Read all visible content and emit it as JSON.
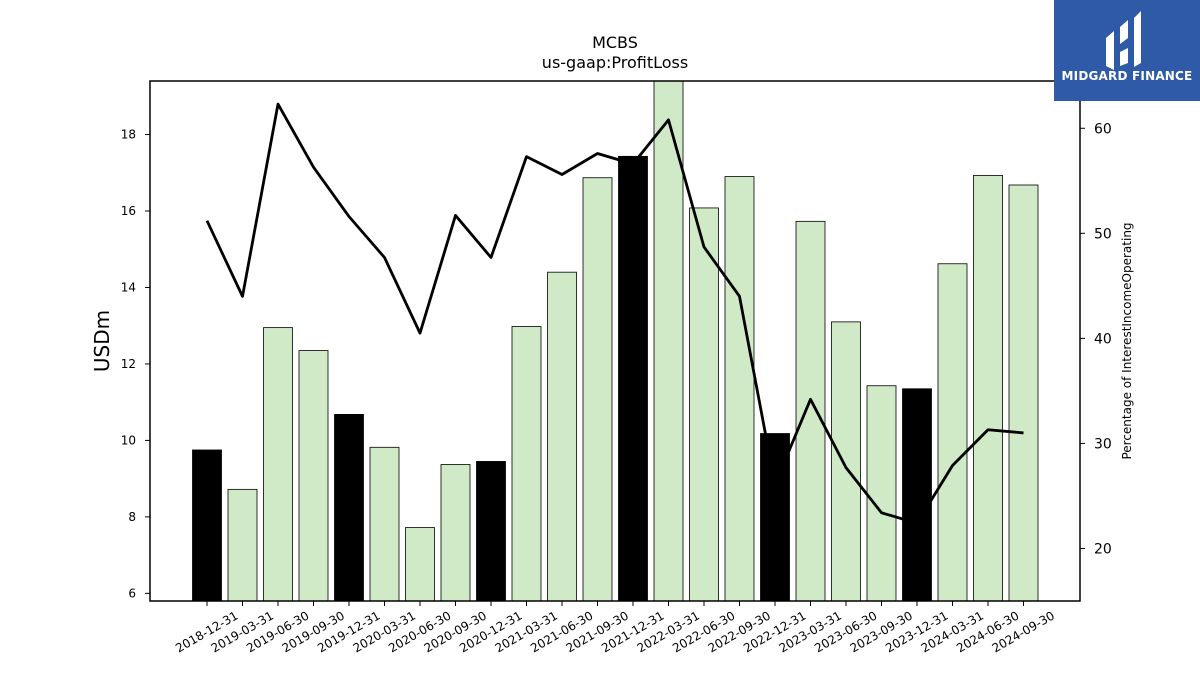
{
  "chart_data": {
    "type": "bar",
    "title": "MCBS",
    "subtitle": "us-gaap:ProfitLoss",
    "ylabel": "USDm",
    "y2label": "Percentage of InterestIncomeOperating",
    "ylim": [
      5.8,
      19.4
    ],
    "y2lim": [
      15,
      64.5
    ],
    "yticks": [
      6,
      8,
      10,
      12,
      14,
      16,
      18
    ],
    "y2ticks": [
      20,
      30,
      40,
      50,
      60
    ],
    "categories": [
      "2018-12-31",
      "2019-03-31",
      "2019-06-30",
      "2019-09-30",
      "2019-12-31",
      "2020-03-31",
      "2020-06-30",
      "2020-09-30",
      "2020-12-31",
      "2021-03-31",
      "2021-06-30",
      "2021-09-30",
      "2021-12-31",
      "2022-03-31",
      "2022-06-30",
      "2022-09-30",
      "2022-12-31",
      "2023-03-31",
      "2023-06-30",
      "2023-09-30",
      "2023-12-31",
      "2024-03-31",
      "2024-06-30",
      "2024-09-30"
    ],
    "series": [
      {
        "kind": "bar",
        "axis": "left",
        "values": [
          9.75,
          8.72,
          12.95,
          12.35,
          10.68,
          9.82,
          7.72,
          9.37,
          9.45,
          12.98,
          14.4,
          16.87,
          17.43,
          19.4,
          16.08,
          16.9,
          10.18,
          15.73,
          13.1,
          11.43,
          11.35,
          14.62,
          16.93,
          16.68
        ],
        "highlight": [
          true,
          false,
          false,
          false,
          true,
          false,
          false,
          false,
          true,
          false,
          false,
          false,
          true,
          false,
          false,
          false,
          true,
          false,
          false,
          false,
          true,
          false,
          false,
          false
        ],
        "color": "#d0eac8",
        "highlight_color": "#000000"
      },
      {
        "kind": "line",
        "axis": "right",
        "values": [
          51.2,
          44.0,
          62.3,
          56.3,
          51.6,
          47.7,
          40.5,
          51.7,
          47.7,
          57.3,
          55.6,
          57.6,
          56.6,
          60.8,
          48.7,
          44.0,
          26.1,
          34.2,
          27.7,
          23.4,
          22.4,
          27.9,
          31.3,
          31.0
        ],
        "color": "#000000"
      }
    ]
  },
  "logo": {
    "text": "MIDGARD FINANCE",
    "color": "#2e5aa8"
  }
}
